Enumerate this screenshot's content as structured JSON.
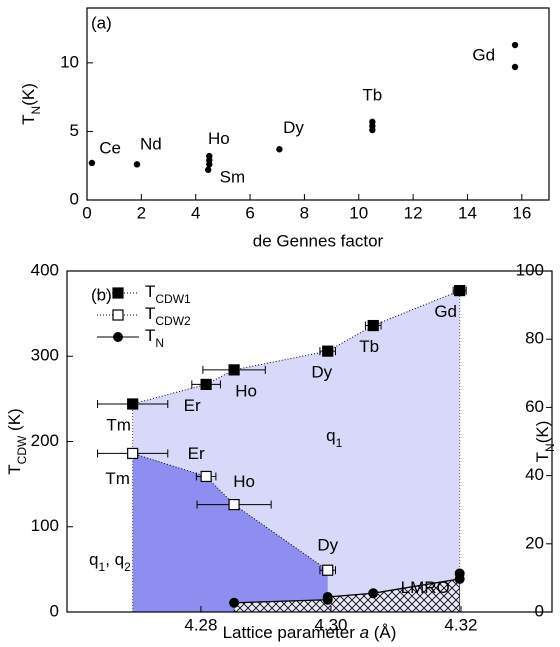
{
  "chart_data": [
    {
      "type": "scatter",
      "panel_label": "(a)",
      "xlabel": "de Gennes factor",
      "ylabel": [
        "T",
        "N",
        "(K)"
      ],
      "x": [
        0.18,
        1.84,
        4.46,
        4.5,
        4.5,
        4.5,
        7.08,
        10.5,
        10.5,
        10.5,
        15.75,
        15.75
      ],
      "values": [
        2.7,
        2.6,
        2.2,
        2.6,
        2.9,
        3.2,
        3.7,
        5.1,
        5.4,
        5.7,
        9.7,
        11.3
      ],
      "color": "#000000",
      "annotations": [
        "Ce",
        "Nd",
        "Ho",
        "Sm",
        "Dy",
        "Tb",
        "Gd"
      ],
      "xlim": [
        0,
        17
      ],
      "xticks": [
        0,
        2,
        4,
        6,
        8,
        10,
        12,
        14,
        16
      ],
      "ylim": [
        0,
        14
      ],
      "yticks": [
        0,
        5,
        10
      ]
    },
    {
      "type": "scatter",
      "panel_label": "(b)",
      "xlabel": [
        "Lattice parameter ",
        "a",
        " (Å)"
      ],
      "ylabel": [
        "T",
        "CDW",
        " (K)"
      ],
      "y2label": [
        "T",
        "N",
        "(K)"
      ],
      "series": [
        {
          "name": [
            "T",
            "CDW1"
          ],
          "color": "#000000",
          "marker": "filled-square",
          "line": "dotted",
          "x": [
            4.2695,
            4.2808,
            4.2851,
            4.2995,
            4.3065,
            4.3198
          ],
          "values": [
            244,
            267,
            284,
            306,
            336,
            377
          ],
          "xerr": [
            0.0054,
            0.0022,
            0.0048,
            0.0012,
            0.0012,
            0.001
          ],
          "labels": [
            "Tm",
            "Er",
            "Ho",
            "Dy",
            "Tb",
            "Gd"
          ]
        },
        {
          "name": [
            "T",
            "CDW2"
          ],
          "color": "#000000",
          "marker": "open-square",
          "line": "dotted",
          "x": [
            4.2695,
            4.2808,
            4.2851,
            4.2995
          ],
          "values": [
            186,
            159,
            126,
            49
          ],
          "xerr": [
            0.0054,
            0.0015,
            0.0057,
            0.0012
          ],
          "labels": [
            "Tm",
            "Er",
            "Ho",
            "Dy"
          ]
        },
        {
          "name": [
            "T",
            "N"
          ],
          "color": "#000000",
          "marker": "circle",
          "line": "solid",
          "axis": "y2",
          "x": [
            4.2851,
            4.2995,
            4.2995,
            4.3065,
            4.3198,
            4.3198
          ],
          "values": [
            2.7,
            3.6,
            4.4,
            5.5,
            9.7,
            11.3
          ]
        }
      ],
      "regions": [
        {
          "label": [
            "q",
            "1"
          ],
          "color": "#d8d8f8"
        },
        {
          "label": [
            "q",
            "1",
            ", q",
            "2"
          ],
          "color": "#8e8ef0"
        },
        {
          "label": [
            "LMRO"
          ],
          "color": "#e4e4f6"
        }
      ],
      "legend": "upper left",
      "xlim": [
        4.2594,
        4.334
      ],
      "xticks": [
        4.28,
        {
          "value": 4.3,
          "label": "4.30"
        },
        4.32
      ],
      "ylim": [
        0,
        400
      ],
      "yticks": [
        0,
        100,
        200,
        300,
        400
      ],
      "y2lim": [
        0,
        100
      ],
      "y2ticks": [
        0,
        20,
        40,
        60,
        80,
        100
      ]
    }
  ]
}
